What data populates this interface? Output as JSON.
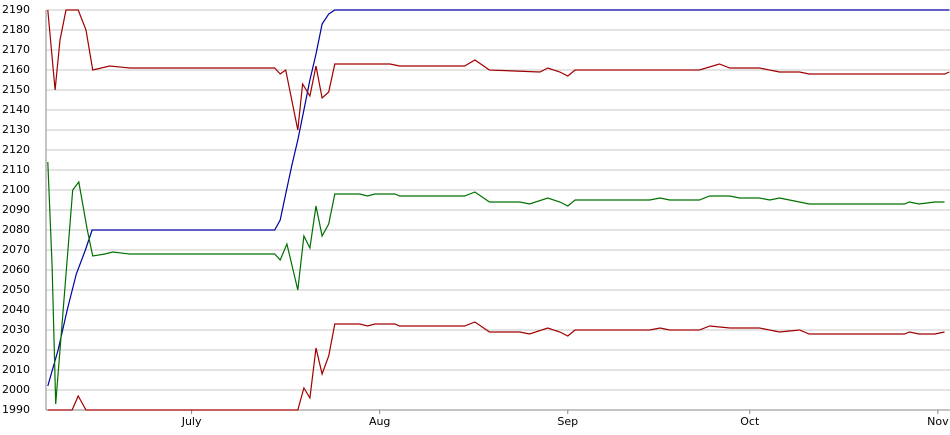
{
  "chart_data": {
    "type": "line",
    "xlim": [
      -24,
      125
    ],
    "xticks": [
      {
        "value": 0,
        "label": "July"
      },
      {
        "value": 31,
        "label": "Aug"
      },
      {
        "value": 62,
        "label": "Sep"
      },
      {
        "value": 92,
        "label": "Oct"
      },
      {
        "value": 123,
        "label": "Nov"
      }
    ],
    "ylim": [
      1990,
      2190
    ],
    "yticks": [
      1990,
      2000,
      2010,
      2020,
      2030,
      2040,
      2050,
      2060,
      2070,
      2080,
      2090,
      2100,
      2110,
      2120,
      2130,
      2140,
      2150,
      2160,
      2170,
      2180,
      2190
    ],
    "grid": true,
    "series": [
      {
        "color": "#0000a0",
        "x": [
          -23.7,
          -22,
          -20.5,
          -19,
          -17.5,
          -16.4,
          13.7,
          14.6,
          15.5,
          16.5,
          17.5,
          18.5,
          19.5,
          20.5,
          21.5,
          22.6,
          23.6,
          124.9
        ],
        "values": [
          2002,
          2020,
          2040,
          2058,
          2070,
          2080,
          2080,
          2085,
          2098,
          2112,
          2125,
          2140,
          2155,
          2168,
          2183,
          2188,
          2190,
          2190
        ]
      },
      {
        "color": "#a00000",
        "x": [
          -23.7,
          -22.5,
          -21.7,
          -20.7,
          -18.7,
          -17.4,
          -16.3,
          -13.5,
          -10.2,
          13.7,
          14.6,
          15.5,
          17.5,
          18.3,
          19.5,
          20.5,
          21.5,
          22.6,
          23.6,
          32.7,
          34.3,
          45.0,
          46.7,
          49.1,
          57.4,
          58.7,
          60.7,
          62.0,
          63.2,
          83.7,
          87.0,
          88.7,
          93.6,
          96.9,
          100.2,
          101.8,
          124.1,
          124.9
        ],
        "values": [
          2190,
          2150,
          2175,
          2190,
          2190,
          2180,
          2160,
          2162,
          2161,
          2161,
          2158,
          2160,
          2130,
          2153,
          2147,
          2162,
          2146,
          2149,
          2163,
          2163,
          2162,
          2162,
          2165,
          2160,
          2159,
          2161,
          2159,
          2157,
          2160,
          2160,
          2163,
          2161,
          2161,
          2159,
          2159,
          2158,
          2158,
          2159
        ]
      },
      {
        "color": "#007000",
        "x": [
          -23.7,
          -23.0,
          -22.4,
          -19.6,
          -18.6,
          -17.2,
          -16.3,
          -14.3,
          -13.0,
          -10.2,
          13.7,
          14.6,
          15.7,
          17.5,
          18.5,
          19.5,
          20.5,
          21.5,
          22.6,
          23.6,
          27.7,
          29.0,
          30.2,
          33.5,
          34.3,
          45.0,
          46.7,
          49.1,
          54.1,
          55.7,
          58.7,
          60.7,
          62.0,
          63.2,
          75.5,
          77.2,
          78.8,
          83.7,
          85.4,
          88.7,
          90.3,
          93.6,
          95.3,
          96.9,
          100.2,
          101.8,
          117.5,
          118.3,
          119.9,
          122.5,
          124.1
        ],
        "values": [
          2114,
          2062,
          1993,
          2100,
          2104,
          2080,
          2067,
          2068,
          2069,
          2068,
          2068,
          2065,
          2073,
          2050,
          2077,
          2071,
          2092,
          2077,
          2083,
          2098,
          2098,
          2097,
          2098,
          2098,
          2097,
          2097,
          2099,
          2094,
          2094,
          2093,
          2096,
          2094,
          2092,
          2095,
          2095,
          2096,
          2095,
          2095,
          2097,
          2097,
          2096,
          2096,
          2095,
          2096,
          2094,
          2093,
          2093,
          2094,
          2093,
          2094,
          2094
        ]
      },
      {
        "color": "#a00000",
        "x": [
          -23.7,
          -19.7,
          -18.7,
          -17.4,
          17.5,
          18.5,
          19.5,
          20.5,
          21.5,
          22.6,
          23.6,
          27.7,
          29.0,
          30.2,
          33.5,
          34.3,
          45.0,
          46.7,
          49.1,
          54.1,
          55.7,
          58.7,
          60.7,
          62.0,
          63.2,
          75.5,
          77.2,
          78.8,
          83.7,
          85.4,
          88.7,
          93.6,
          96.9,
          100.2,
          101.8,
          117.5,
          118.3,
          119.9,
          122.5,
          124.1
        ],
        "values": [
          1990,
          1990,
          1997,
          1990,
          1990,
          2001,
          1996,
          2021,
          2008,
          2017,
          2033,
          2033,
          2032,
          2033,
          2033,
          2032,
          2032,
          2034,
          2029,
          2029,
          2028,
          2031,
          2029,
          2027,
          2030,
          2030,
          2031,
          2030,
          2030,
          2032,
          2031,
          2031,
          2029,
          2030,
          2028,
          2028,
          2029,
          2028,
          2028,
          2029
        ]
      }
    ]
  }
}
